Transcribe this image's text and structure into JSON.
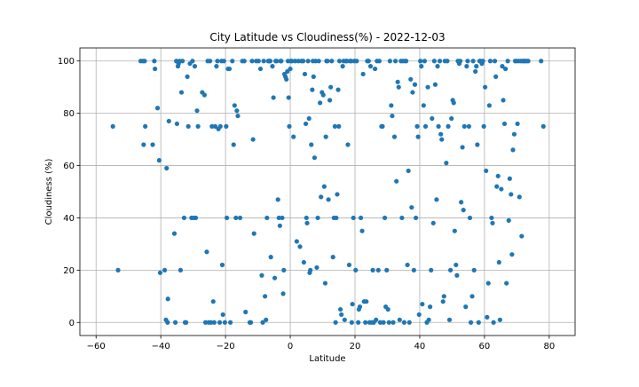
{
  "chart_data": {
    "type": "scatter",
    "title": "City Latitude vs Cloudiness(%) - 2022-12-03",
    "xlabel": "Latitude",
    "ylabel": "Cloudiness (%)",
    "xlim": [
      -65,
      88
    ],
    "ylim": [
      -5,
      105
    ],
    "xticks": [
      -60,
      -40,
      -20,
      0,
      20,
      40,
      60,
      80
    ],
    "yticks": [
      0,
      20,
      40,
      60,
      80,
      100
    ],
    "grid": true,
    "color": "#1f77b4",
    "points": [
      [
        -54.8,
        75
      ],
      [
        -53.2,
        20
      ],
      [
        -46.2,
        100
      ],
      [
        -45.5,
        100
      ],
      [
        -45,
        100
      ],
      [
        -45.3,
        68
      ],
      [
        -44.8,
        75
      ],
      [
        -42.5,
        68
      ],
      [
        -42,
        100
      ],
      [
        -41.8,
        97
      ],
      [
        -41,
        82
      ],
      [
        -40.5,
        62
      ],
      [
        -40.2,
        19
      ],
      [
        -38.8,
        20
      ],
      [
        -38.4,
        1
      ],
      [
        -38.2,
        59
      ],
      [
        -37.9,
        0
      ],
      [
        -37.8,
        9
      ],
      [
        -37.5,
        77
      ],
      [
        -35.8,
        34
      ],
      [
        -35.5,
        0
      ],
      [
        -35.2,
        100
      ],
      [
        -35,
        76
      ],
      [
        -34.7,
        98
      ],
      [
        -34.5,
        99
      ],
      [
        -34.2,
        100
      ],
      [
        -33.9,
        20
      ],
      [
        -33.6,
        88
      ],
      [
        -33.3,
        100
      ],
      [
        -32.8,
        40
      ],
      [
        -32.5,
        0
      ],
      [
        -32.2,
        0
      ],
      [
        -31.8,
        94
      ],
      [
        -31.5,
        75
      ],
      [
        -31,
        99
      ],
      [
        -30.5,
        40
      ],
      [
        -30.2,
        100
      ],
      [
        -29.8,
        40
      ],
      [
        -29.5,
        98
      ],
      [
        -29.2,
        40
      ],
      [
        -28.8,
        81
      ],
      [
        -28.5,
        75
      ],
      [
        -27.2,
        88
      ],
      [
        -26.5,
        87
      ],
      [
        -26.2,
        0
      ],
      [
        -25.8,
        27
      ],
      [
        -25.5,
        100
      ],
      [
        -25.2,
        0
      ],
      [
        -24.8,
        100
      ],
      [
        -24.5,
        0
      ],
      [
        -24.2,
        75
      ],
      [
        -23.8,
        8
      ],
      [
        -23.5,
        0
      ],
      [
        -23.2,
        75
      ],
      [
        -22.8,
        98
      ],
      [
        -22.5,
        100
      ],
      [
        -22.2,
        74
      ],
      [
        -21.8,
        0
      ],
      [
        -21.6,
        75
      ],
      [
        -21.2,
        100
      ],
      [
        -21,
        22
      ],
      [
        -20.8,
        3
      ],
      [
        -20.5,
        100
      ],
      [
        -20.2,
        0
      ],
      [
        -19.8,
        75
      ],
      [
        -19.6,
        40
      ],
      [
        -19.2,
        97
      ],
      [
        -18.8,
        97
      ],
      [
        -18.5,
        0
      ],
      [
        -17.9,
        100
      ],
      [
        -17.5,
        68
      ],
      [
        -17.2,
        83
      ],
      [
        -16.8,
        40
      ],
      [
        -16.5,
        81
      ],
      [
        -16.2,
        79
      ],
      [
        -15.5,
        40
      ],
      [
        -14.8,
        100
      ],
      [
        -14.2,
        100
      ],
      [
        -13.8,
        4
      ],
      [
        -12.5,
        0
      ],
      [
        -12.2,
        0
      ],
      [
        -11.8,
        100
      ],
      [
        -11.5,
        70
      ],
      [
        -11.2,
        34
      ],
      [
        -10.5,
        100
      ],
      [
        -9.8,
        100
      ],
      [
        -9.2,
        97
      ],
      [
        -8.8,
        18
      ],
      [
        -8.5,
        0
      ],
      [
        -8.2,
        100
      ],
      [
        -7.8,
        10
      ],
      [
        -7.5,
        1
      ],
      [
        -7.2,
        40
      ],
      [
        -6.8,
        100
      ],
      [
        -6.5,
        100
      ],
      [
        -6.2,
        100
      ],
      [
        -6,
        25
      ],
      [
        -5.5,
        98
      ],
      [
        -5.2,
        86
      ],
      [
        -4.8,
        17
      ],
      [
        -4.5,
        100
      ],
      [
        -4.2,
        100
      ],
      [
        -3.8,
        47
      ],
      [
        -3.5,
        40
      ],
      [
        -3.2,
        37
      ],
      [
        -3,
        100
      ],
      [
        -2.8,
        100
      ],
      [
        -2.5,
        40
      ],
      [
        -2.2,
        11
      ],
      [
        -2,
        20
      ],
      [
        -1.8,
        95
      ],
      [
        -1.5,
        94
      ],
      [
        -1.2,
        93
      ],
      [
        -0.9,
        96
      ],
      [
        -0.7,
        100
      ],
      [
        -0.5,
        86
      ],
      [
        -0.3,
        75
      ],
      [
        0,
        97
      ],
      [
        0.2,
        100
      ],
      [
        0.5,
        100
      ],
      [
        1,
        71
      ],
      [
        1.5,
        100
      ],
      [
        2,
        31
      ],
      [
        2.5,
        100
      ],
      [
        3,
        29
      ],
      [
        3.5,
        100
      ],
      [
        4,
        100
      ],
      [
        4.2,
        23
      ],
      [
        4.5,
        95
      ],
      [
        4.8,
        76
      ],
      [
        5,
        40
      ],
      [
        5.2,
        38
      ],
      [
        5.5,
        100
      ],
      [
        5.8,
        78
      ],
      [
        6,
        19
      ],
      [
        6.2,
        20
      ],
      [
        6.5,
        68
      ],
      [
        6.8,
        89
      ],
      [
        7,
        100
      ],
      [
        7.2,
        94
      ],
      [
        7.5,
        63
      ],
      [
        7.8,
        100
      ],
      [
        8.2,
        21
      ],
      [
        8.5,
        40
      ],
      [
        8.8,
        100
      ],
      [
        9.2,
        84
      ],
      [
        9.5,
        48
      ],
      [
        9.8,
        88
      ],
      [
        10.2,
        87
      ],
      [
        10.5,
        52
      ],
      [
        10.8,
        15
      ],
      [
        11,
        71
      ],
      [
        11.2,
        100
      ],
      [
        11.5,
        100
      ],
      [
        11.8,
        47
      ],
      [
        12.2,
        85
      ],
      [
        12.5,
        90
      ],
      [
        12.8,
        100
      ],
      [
        13.2,
        25
      ],
      [
        13.5,
        40
      ],
      [
        13.8,
        75
      ],
      [
        14,
        0
      ],
      [
        14.2,
        40
      ],
      [
        14.5,
        49
      ],
      [
        14.8,
        89
      ],
      [
        15,
        75
      ],
      [
        15.2,
        100
      ],
      [
        15.5,
        5
      ],
      [
        15.8,
        3
      ],
      [
        16.2,
        98
      ],
      [
        16.5,
        100
      ],
      [
        16.8,
        1
      ],
      [
        17.2,
        100
      ],
      [
        17.5,
        100
      ],
      [
        17.8,
        68
      ],
      [
        18.2,
        22
      ],
      [
        18.5,
        100
      ],
      [
        18.8,
        100
      ],
      [
        19,
        0
      ],
      [
        19.2,
        7
      ],
      [
        19.5,
        40
      ],
      [
        19.8,
        100
      ],
      [
        20.2,
        20
      ],
      [
        20.5,
        100
      ],
      [
        21,
        0
      ],
      [
        21.2,
        5
      ],
      [
        21.5,
        6
      ],
      [
        21.8,
        40
      ],
      [
        22.2,
        35
      ],
      [
        22.5,
        95
      ],
      [
        22.8,
        8
      ],
      [
        23.2,
        0
      ],
      [
        23.5,
        8
      ],
      [
        23.8,
        100
      ],
      [
        24.2,
        100
      ],
      [
        24.5,
        0
      ],
      [
        24.8,
        98
      ],
      [
        25.2,
        0
      ],
      [
        25.5,
        20
      ],
      [
        25.8,
        0
      ],
      [
        26.2,
        97
      ],
      [
        26.5,
        1
      ],
      [
        26.8,
        100
      ],
      [
        27.2,
        20
      ],
      [
        27.5,
        100
      ],
      [
        27.8,
        0
      ],
      [
        28.2,
        75
      ],
      [
        28.5,
        75
      ],
      [
        28.8,
        0
      ],
      [
        29.2,
        40
      ],
      [
        29.5,
        6
      ],
      [
        29.8,
        20
      ],
      [
        30.2,
        5
      ],
      [
        30.5,
        0
      ],
      [
        30.8,
        100
      ],
      [
        31.2,
        83
      ],
      [
        31.5,
        79
      ],
      [
        31.8,
        0
      ],
      [
        32.2,
        71
      ],
      [
        32.5,
        100
      ],
      [
        32.8,
        54
      ],
      [
        33.2,
        92
      ],
      [
        33.5,
        90
      ],
      [
        33.8,
        1
      ],
      [
        34.2,
        100
      ],
      [
        34.5,
        40
      ],
      [
        34.8,
        100
      ],
      [
        35.2,
        0
      ],
      [
        35.5,
        100
      ],
      [
        35.8,
        100
      ],
      [
        36.2,
        22
      ],
      [
        36.5,
        58
      ],
      [
        36.8,
        0
      ],
      [
        37.2,
        93
      ],
      [
        37.5,
        44
      ],
      [
        37.8,
        88
      ],
      [
        38.2,
        20
      ],
      [
        38.5,
        91
      ],
      [
        38.8,
        40
      ],
      [
        39.2,
        75
      ],
      [
        39.5,
        71
      ],
      [
        39.8,
        3
      ],
      [
        40.2,
        100
      ],
      [
        40.5,
        98
      ],
      [
        40.8,
        7
      ],
      [
        41.2,
        83
      ],
      [
        41.5,
        100
      ],
      [
        41.8,
        75
      ],
      [
        42.2,
        0
      ],
      [
        42.5,
        90
      ],
      [
        42.8,
        1
      ],
      [
        43.2,
        6
      ],
      [
        43.5,
        20
      ],
      [
        43.8,
        78
      ],
      [
        44.2,
        38
      ],
      [
        44.5,
        100
      ],
      [
        44.8,
        91
      ],
      [
        45.2,
        47
      ],
      [
        45.5,
        98
      ],
      [
        45.8,
        75
      ],
      [
        46.2,
        100
      ],
      [
        46.5,
        72
      ],
      [
        46.8,
        70
      ],
      [
        47.2,
        8
      ],
      [
        47.5,
        10
      ],
      [
        47.8,
        100
      ],
      [
        48.2,
        61
      ],
      [
        48.5,
        100
      ],
      [
        48.8,
        75
      ],
      [
        49.2,
        1
      ],
      [
        49.5,
        20
      ],
      [
        49.8,
        78
      ],
      [
        50.2,
        85
      ],
      [
        50.5,
        84
      ],
      [
        50.8,
        35
      ],
      [
        51.2,
        22
      ],
      [
        51.5,
        18
      ],
      [
        51.8,
        100
      ],
      [
        52.2,
        99
      ],
      [
        52.5,
        100
      ],
      [
        52.8,
        46
      ],
      [
        53.2,
        67
      ],
      [
        53.5,
        43
      ],
      [
        53.8,
        75
      ],
      [
        54.2,
        6
      ],
      [
        54.5,
        98
      ],
      [
        54.8,
        100
      ],
      [
        55.2,
        75
      ],
      [
        55.5,
        40
      ],
      [
        55.8,
        0
      ],
      [
        56.2,
        10
      ],
      [
        56.5,
        100
      ],
      [
        56.8,
        20
      ],
      [
        57.2,
        96
      ],
      [
        57.5,
        98
      ],
      [
        57.8,
        68
      ],
      [
        58.2,
        0
      ],
      [
        58.5,
        100
      ],
      [
        58.8,
        100
      ],
      [
        59.2,
        99
      ],
      [
        59.5,
        100
      ],
      [
        59.8,
        75
      ],
      [
        60.2,
        90
      ],
      [
        60.5,
        58
      ],
      [
        60.8,
        2
      ],
      [
        61.2,
        15
      ],
      [
        61.5,
        83
      ],
      [
        61.8,
        100
      ],
      [
        62.2,
        40
      ],
      [
        62.5,
        38
      ],
      [
        62.8,
        0
      ],
      [
        63.2,
        100
      ],
      [
        63.5,
        94
      ],
      [
        63.8,
        52
      ],
      [
        64.2,
        56
      ],
      [
        64.5,
        23
      ],
      [
        64.8,
        1
      ],
      [
        65.2,
        51
      ],
      [
        65.5,
        98
      ],
      [
        65.8,
        85
      ],
      [
        66.2,
        76
      ],
      [
        66.5,
        97
      ],
      [
        66.8,
        15
      ],
      [
        67.2,
        100
      ],
      [
        67.5,
        39
      ],
      [
        67.8,
        55
      ],
      [
        68.2,
        49
      ],
      [
        68.5,
        26
      ],
      [
        68.8,
        66
      ],
      [
        69.2,
        72
      ],
      [
        69.5,
        100
      ],
      [
        69.8,
        100
      ],
      [
        70.2,
        76
      ],
      [
        70.5,
        100
      ],
      [
        70.8,
        48
      ],
      [
        71.2,
        100
      ],
      [
        71.5,
        33
      ],
      [
        71.8,
        100
      ],
      [
        72.2,
        100
      ],
      [
        72.5,
        100
      ],
      [
        73,
        100
      ],
      [
        73.5,
        100
      ],
      [
        77.5,
        100
      ],
      [
        78.2,
        75
      ]
    ]
  }
}
